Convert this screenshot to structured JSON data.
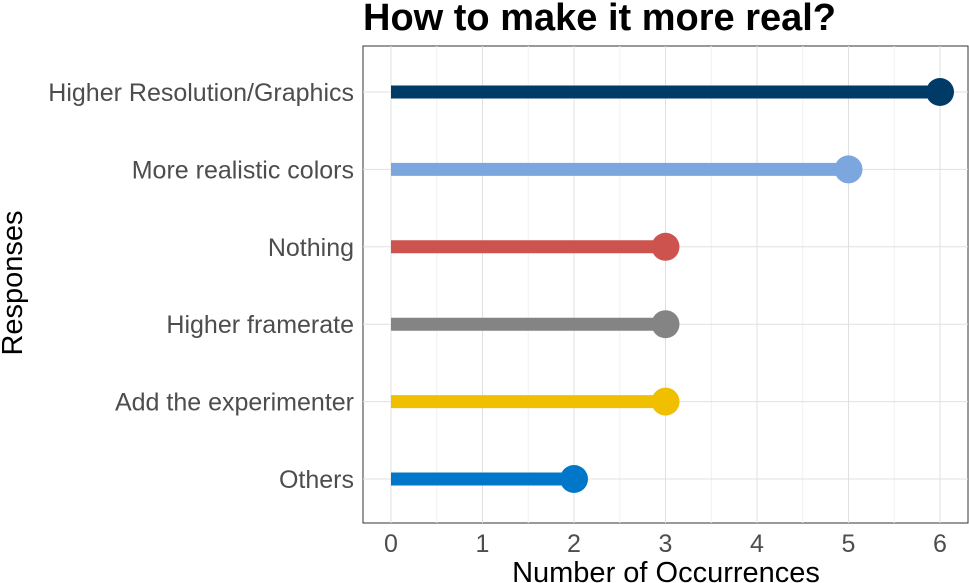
{
  "chart_data": {
    "type": "lollipop",
    "title": "How to make it more real?",
    "xlabel": "Number of Occurrences",
    "ylabel": "Responses",
    "xlim": [
      0,
      6
    ],
    "xticks": [
      0,
      1,
      2,
      3,
      4,
      5,
      6
    ],
    "grid": true,
    "categories": [
      "Higher Resolution/Graphics",
      "More realistic colors",
      "Nothing",
      "Higher framerate",
      "Add the experimenter",
      "Others"
    ],
    "values": [
      6,
      5,
      3,
      3,
      3,
      2
    ],
    "colors": [
      "#003a66",
      "#7ba7de",
      "#cd544e",
      "#848484",
      "#f0c000",
      "#0077c8"
    ]
  }
}
